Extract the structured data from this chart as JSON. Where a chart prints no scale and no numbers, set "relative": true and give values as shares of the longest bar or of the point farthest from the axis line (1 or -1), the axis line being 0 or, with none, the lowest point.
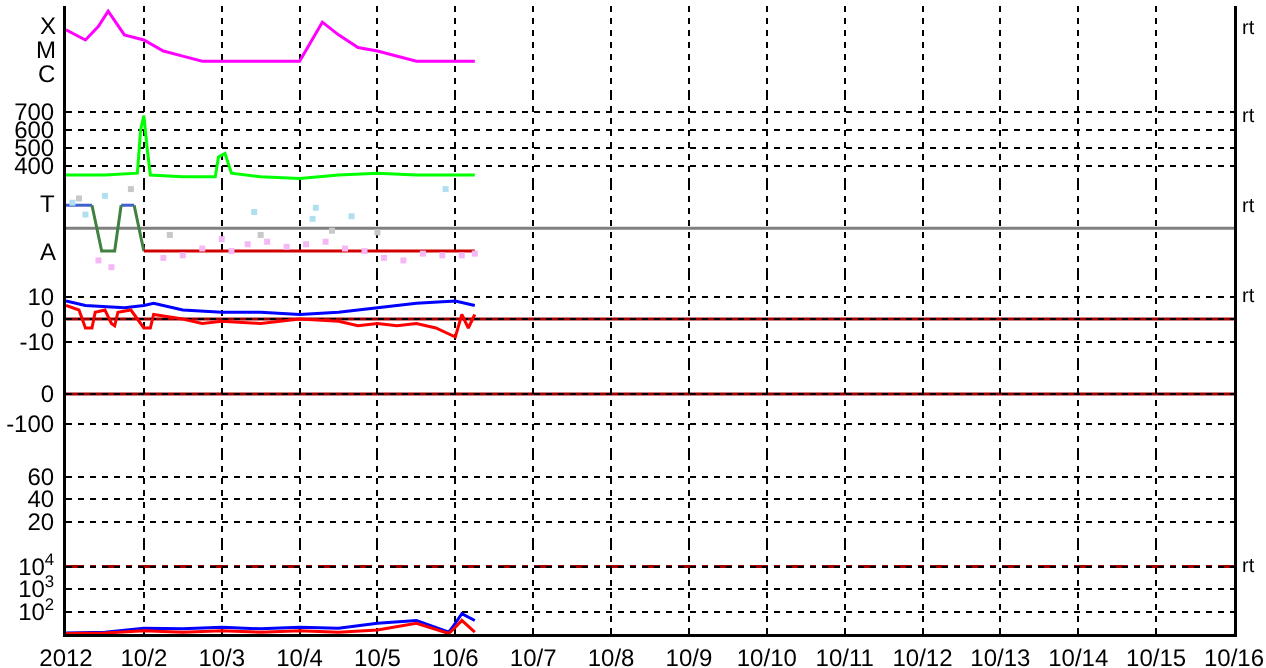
{
  "chart_data": [
    {
      "type": "line",
      "relative": true,
      "xlim": [
        "2012-10-01",
        "2012-10-16"
      ],
      "xticks": [
        "2012-10-02",
        "2012-10-03",
        "2012-10-04",
        "2012-10-05",
        "2012-10-06",
        "2012-10-07",
        "2012-10-08",
        "2012-10-09",
        "2012-10-10",
        "2012-10-11",
        "2012-10-12",
        "2012-10-13",
        "2012-10-14",
        "2012-10-15"
      ],
      "grid": "x",
      "tick_labels": "y",
      "annotations": [
        "X",
        "M",
        "C",
        "rt"
      ],
      "series": [
        {
          "color": "#ff00ff",
          "x": [
            "2012-10-01T00:00",
            "2012-10-01T06:00",
            "2012-10-01T10:00",
            "2012-10-01T13:00",
            "2012-10-01T18:00",
            "2012-10-02T00:00",
            "2012-10-02T06:00",
            "2012-10-02T12:00",
            "2012-10-02T18:00",
            "2012-10-03T00:00",
            "2012-10-03T12:00",
            "2012-10-04T00:00",
            "2012-10-04T07:00",
            "2012-10-04T12:00",
            "2012-10-04T18:00",
            "2012-10-05T00:00",
            "2012-10-05T12:00",
            "2012-10-06T00:00",
            "2012-10-06T06:00"
          ],
          "values": [
            0.78,
            0.66,
            0.82,
            1,
            0.72,
            0.66,
            0.53,
            0.47,
            0.41,
            0.41,
            0.41,
            0.41,
            0.87,
            0.72,
            0.57,
            0.53,
            0.41,
            0.41,
            0.41
          ]
        }
      ]
    },
    {
      "type": "line",
      "ylim": [
        300,
        800
      ],
      "yticks": [
        400,
        500,
        600,
        700
      ],
      "xlim": [
        "2012-10-01",
        "2012-10-16"
      ],
      "xticks": [
        "2012-10-02",
        "2012-10-03",
        "2012-10-04",
        "2012-10-05",
        "2012-10-06",
        "2012-10-07",
        "2012-10-08",
        "2012-10-09",
        "2012-10-10",
        "2012-10-11",
        "2012-10-12",
        "2012-10-13",
        "2012-10-14",
        "2012-10-15"
      ],
      "grid": true,
      "tick_labels": "y",
      "annotations": [
        "rt"
      ],
      "series": [
        {
          "color": "#00ff00",
          "x": [
            "2012-10-01T00:00",
            "2012-10-01T12:00",
            "2012-10-01T22:00",
            "2012-10-01T23:00",
            "2012-10-02T00:00",
            "2012-10-02T01:00",
            "2012-10-02T02:00",
            "2012-10-02T12:00",
            "2012-10-02T22:00",
            "2012-10-02T23:00",
            "2012-10-03T01:00",
            "2012-10-03T03:00",
            "2012-10-03T12:00",
            "2012-10-04T00:00",
            "2012-10-04T12:00",
            "2012-10-05T00:00",
            "2012-10-05T12:00",
            "2012-10-06T00:00",
            "2012-10-06T06:00"
          ],
          "values": [
            350,
            350,
            360,
            600,
            680,
            500,
            350,
            340,
            340,
            450,
            470,
            360,
            340,
            330,
            350,
            360,
            350,
            350,
            350
          ]
        }
      ]
    },
    {
      "type": "line",
      "relative": true,
      "xlim": [
        "2012-10-01",
        "2012-10-16"
      ],
      "xticks": [
        "2012-10-02",
        "2012-10-03",
        "2012-10-04",
        "2012-10-05",
        "2012-10-06",
        "2012-10-07",
        "2012-10-08",
        "2012-10-09",
        "2012-10-10",
        "2012-10-11",
        "2012-10-12",
        "2012-10-13",
        "2012-10-14",
        "2012-10-15"
      ],
      "grid": "x",
      "tick_labels": "y",
      "annotations": [
        "T",
        "A",
        "rt"
      ],
      "ref_lines": [
        {
          "axis": "y",
          "value": 0.54,
          "color": "#808080"
        }
      ],
      "series": [
        {
          "type": "scatter",
          "marker": "square",
          "color": "#f4b8f4",
          "x": [
            "2012-10-01T10:00",
            "2012-10-01T14:00",
            "2012-10-02T06:00",
            "2012-10-02T12:00",
            "2012-10-02T18:00",
            "2012-10-03T00:00",
            "2012-10-03T03:00",
            "2012-10-03T08:00",
            "2012-10-03T14:00",
            "2012-10-03T20:00",
            "2012-10-04T02:00",
            "2012-10-04T08:00",
            "2012-10-04T14:00",
            "2012-10-04T20:00",
            "2012-10-05T02:00",
            "2012-10-05T08:00",
            "2012-10-05T14:00",
            "2012-10-05T20:00",
            "2012-10-06T02:00",
            "2012-10-06T06:00"
          ],
          "values": [
            0.16,
            0.08,
            0.19,
            0.22,
            0.3,
            0.41,
            0.27,
            0.35,
            0.38,
            0.32,
            0.35,
            0.38,
            0.3,
            0.27,
            0.19,
            0.16,
            0.24,
            0.22,
            0.22,
            0.24
          ]
        },
        {
          "type": "scatter",
          "marker": "square",
          "color": "#b0e0f0",
          "x": [
            "2012-10-01T02:00",
            "2012-10-01T06:00",
            "2012-10-01T12:00",
            "2012-10-03T10:00",
            "2012-10-04T04:00",
            "2012-10-04T05:00",
            "2012-10-04T16:00",
            "2012-10-05T21:00"
          ],
          "values": [
            0.84,
            0.7,
            0.92,
            0.73,
            0.65,
            0.78,
            0.68,
            1
          ]
        },
        {
          "type": "scatter",
          "marker": "square",
          "color": "#c8c8c8",
          "x": [
            "2012-10-01T04:00",
            "2012-10-01T20:00",
            "2012-10-02T08:00",
            "2012-10-03T12:00",
            "2012-10-04T10:00",
            "2012-10-05T00:00"
          ],
          "values": [
            0.89,
            1,
            0.46,
            0.46,
            0.51,
            0.49
          ]
        },
        {
          "color": "#4060d0",
          "x": [
            "2012-10-01T00:00",
            "2012-10-01T08:00",
            "2012-10-01T12:00",
            "2012-10-01T17:00",
            "2012-10-01T21:00"
          ],
          "values": [
            0.81,
            0.81,
            null,
            0.81,
            0.81
          ]
        },
        {
          "color": "#408040",
          "x": [
            "2012-10-01T08:00",
            "2012-10-01T11:00",
            "2012-10-01T15:00",
            "2012-10-01T17:00",
            "2012-10-01T19:00",
            "2012-10-01T21:00",
            "2012-10-02T00:00"
          ],
          "values": [
            0.81,
            0.27,
            0.27,
            0.81,
            null,
            0.81,
            0.27
          ]
        },
        {
          "color": "#d00000",
          "x": [
            "2012-10-02T00:00",
            "2012-10-06T06:00"
          ],
          "values": [
            0.27,
            0.27
          ]
        }
      ]
    },
    {
      "type": "line",
      "ylim": [
        -20,
        20
      ],
      "yticks": [
        10,
        0,
        -10
      ],
      "xlim": [
        "2012-10-01",
        "2012-10-16"
      ],
      "xticks": [
        "2012-10-02",
        "2012-10-03",
        "2012-10-04",
        "2012-10-05",
        "2012-10-06",
        "2012-10-07",
        "2012-10-08",
        "2012-10-09",
        "2012-10-10",
        "2012-10-11",
        "2012-10-12",
        "2012-10-13",
        "2012-10-14",
        "2012-10-15"
      ],
      "grid": true,
      "tick_labels": "y",
      "annotations": [
        "rt"
      ],
      "ref_lines": [
        {
          "axis": "y",
          "value": 0,
          "color": "#a00000"
        }
      ],
      "series": [
        {
          "color": "#0000ff",
          "x": [
            "2012-10-01T00:00",
            "2012-10-01T06:00",
            "2012-10-01T18:00",
            "2012-10-02T00:00",
            "2012-10-02T03:00",
            "2012-10-02T12:00",
            "2012-10-03T00:00",
            "2012-10-03T12:00",
            "2012-10-04T00:00",
            "2012-10-04T12:00",
            "2012-10-05T00:00",
            "2012-10-05T12:00",
            "2012-10-06T00:00",
            "2012-10-06T06:00"
          ],
          "values": [
            8,
            6,
            5,
            6,
            7,
            4,
            3,
            3,
            2,
            3,
            5,
            7,
            8,
            6
          ]
        },
        {
          "color": "#ff0000",
          "x": [
            "2012-10-01T00:00",
            "2012-10-01T04:00",
            "2012-10-01T06:00",
            "2012-10-01T08:00",
            "2012-10-01T09:00",
            "2012-10-01T12:00",
            "2012-10-01T14:00",
            "2012-10-01T15:00",
            "2012-10-01T16:00",
            "2012-10-01T20:00",
            "2012-10-02T00:00",
            "2012-10-02T02:00",
            "2012-10-02T03:00",
            "2012-10-02T12:00",
            "2012-10-02T18:00",
            "2012-10-03T00:00",
            "2012-10-03T12:00",
            "2012-10-04T00:00",
            "2012-10-04T12:00",
            "2012-10-04T18:00",
            "2012-10-05T00:00",
            "2012-10-05T06:00",
            "2012-10-05T12:00",
            "2012-10-05T18:00",
            "2012-10-06T00:00",
            "2012-10-06T02:00",
            "2012-10-06T04:00",
            "2012-10-06T06:00"
          ],
          "values": [
            6,
            4,
            -4,
            -4,
            3,
            4,
            -2,
            -3,
            3,
            4,
            -4,
            -4,
            2,
            0,
            -2,
            -1,
            -2,
            0,
            -1,
            -3,
            -2,
            -3,
            -2,
            -4,
            -8,
            2,
            -4,
            2
          ]
        }
      ]
    },
    {
      "type": "line",
      "ylim": [
        -200,
        100
      ],
      "yticks": [
        0,
        -100
      ],
      "xlim": [
        "2012-10-01",
        "2012-10-16"
      ],
      "xticks": [
        "2012-10-02",
        "2012-10-03",
        "2012-10-04",
        "2012-10-05",
        "2012-10-06",
        "2012-10-07",
        "2012-10-08",
        "2012-10-09",
        "2012-10-10",
        "2012-10-11",
        "2012-10-12",
        "2012-10-13",
        "2012-10-14",
        "2012-10-15"
      ],
      "grid": true,
      "tick_labels": "y",
      "ref_lines": [
        {
          "axis": "y",
          "value": 0,
          "color": "#a00000"
        }
      ]
    },
    {
      "type": "line",
      "ylim": [
        0,
        80
      ],
      "yticks": [
        20,
        40,
        60
      ],
      "xlim": [
        "2012-10-01",
        "2012-10-16"
      ],
      "xticks": [
        "2012-10-02",
        "2012-10-03",
        "2012-10-04",
        "2012-10-05",
        "2012-10-06",
        "2012-10-07",
        "2012-10-08",
        "2012-10-09",
        "2012-10-10",
        "2012-10-11",
        "2012-10-12",
        "2012-10-13",
        "2012-10-14",
        "2012-10-15"
      ],
      "grid": true,
      "tick_labels": "y"
    },
    {
      "type": "line",
      "log": "y",
      "ylim": [
        10,
        100000
      ],
      "yticks": [
        {
          "value": 100,
          "label": "10$^{2}$"
        },
        {
          "value": 1000,
          "label": "10$^{3}$"
        },
        {
          "value": 10000,
          "label": "10$^{4}$"
        }
      ],
      "xlim": [
        "2012-10-01",
        "2012-10-16"
      ],
      "xticks": [
        {
          "value": "2012-10-01",
          "label": "2012"
        },
        {
          "value": "2012-10-02",
          "label": "10/2"
        },
        {
          "value": "2012-10-03",
          "label": "10/3"
        },
        {
          "value": "2012-10-04",
          "label": "10/4"
        },
        {
          "value": "2012-10-05",
          "label": "10/5"
        },
        {
          "value": "2012-10-06",
          "label": "10/6"
        },
        {
          "value": "2012-10-07",
          "label": "10/7"
        },
        {
          "value": "2012-10-08",
          "label": "10/8"
        },
        {
          "value": "2012-10-09",
          "label": "10/9"
        },
        {
          "value": "2012-10-10",
          "label": "10/10"
        },
        {
          "value": "2012-10-11",
          "label": "10/11"
        },
        {
          "value": "2012-10-12",
          "label": "10/12"
        },
        {
          "value": "2012-10-13",
          "label": "10/13"
        },
        {
          "value": "2012-10-14",
          "label": "10/14"
        },
        {
          "value": "2012-10-15",
          "label": "10/15"
        },
        {
          "value": "2012-10-16",
          "label": "10/16"
        }
      ],
      "grid": true,
      "annotations": [
        "rt"
      ],
      "ref_lines": [
        {
          "axis": "y",
          "value": 10000,
          "color": "#a00000",
          "line_style": "dashed"
        }
      ],
      "series": [
        {
          "color": "#0000ff",
          "x": [
            "2012-10-01T00:00",
            "2012-10-01T12:00",
            "2012-10-02T00:00",
            "2012-10-02T12:00",
            "2012-10-03T00:00",
            "2012-10-03T12:00",
            "2012-10-04T00:00",
            "2012-10-04T12:00",
            "2012-10-05T00:00",
            "2012-10-05T12:00",
            "2012-10-05T22:00",
            "2012-10-06T00:00",
            "2012-10-06T02:00",
            "2012-10-06T06:00"
          ],
          "values": [
            11,
            12,
            18,
            17,
            20,
            17,
            20,
            18,
            30,
            40,
            12,
            30,
            80,
            40
          ]
        },
        {
          "color": "#ff0000",
          "x": [
            "2012-10-01T00:00",
            "2012-10-01T12:00",
            "2012-10-02T00:00",
            "2012-10-02T12:00",
            "2012-10-03T00:00",
            "2012-10-03T12:00",
            "2012-10-04T00:00",
            "2012-10-04T12:00",
            "2012-10-05T00:00",
            "2012-10-05T12:00",
            "2012-10-05T22:00",
            "2012-10-06T00:00",
            "2012-10-06T02:00",
            "2012-10-06T06:00"
          ],
          "values": [
            10.5,
            11,
            14,
            12,
            14,
            12,
            14,
            12,
            15,
            30,
            10.5,
            20,
            40,
            12
          ]
        }
      ]
    }
  ]
}
